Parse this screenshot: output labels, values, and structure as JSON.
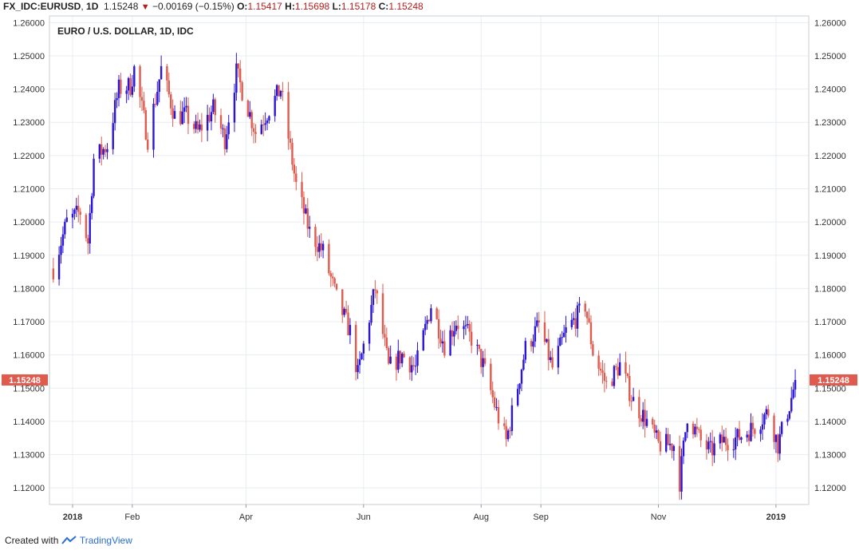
{
  "header": {
    "symbol": "FX_IDC:EURUSD",
    "interval": "1D",
    "last": "1.15248",
    "change": "−0.00169 (−0.15%)",
    "o_label": "O:",
    "o": "1.15417",
    "h_label": "H:",
    "h": "1.15698",
    "l_label": "L:",
    "l": "1.15178",
    "c_label": "C:",
    "c": "1.15248"
  },
  "footer": {
    "prefix": "Created with",
    "brand": "TradingView"
  },
  "colors": {
    "up": "#2b15d6",
    "down": "#e05a4e",
    "grid": "#e8edf2",
    "price_tag": "#e05a4e"
  },
  "chart_data": {
    "type": "candlestick",
    "title": "EURO / U.S. DOLLAR, 1D, IDC",
    "ylim": [
      1.115,
      1.262
    ],
    "y_ticks": [
      "1.12000",
      "1.13000",
      "1.14000",
      "1.15000",
      "1.16000",
      "1.17000",
      "1.18000",
      "1.19000",
      "1.20000",
      "1.21000",
      "1.22000",
      "1.23000",
      "1.24000",
      "1.25000",
      "1.26000"
    ],
    "x_ticks": [
      {
        "label": "2018",
        "date": "2018-01-01"
      },
      {
        "label": "Feb",
        "date": "2018-02-01"
      },
      {
        "label": "Apr",
        "date": "2018-04-01"
      },
      {
        "label": "Jun",
        "date": "2018-06-01"
      },
      {
        "label": "Aug",
        "date": "2018-08-01"
      },
      {
        "label": "Sep",
        "date": "2018-09-01"
      },
      {
        "label": "Nov",
        "date": "2018-11-01"
      },
      {
        "label": "2019",
        "date": "2019-01-01"
      }
    ],
    "date_range": [
      "2017-12-20",
      "2019-01-18"
    ],
    "last_price": "1.15248",
    "up_color": "#2b15d6",
    "down_color": "#e05a4e",
    "close_path": [
      [
        "2017-12-22",
        1.186
      ],
      [
        "2017-12-29",
        1.2
      ],
      [
        "2018-01-05",
        1.203
      ],
      [
        "2018-01-09",
        1.194
      ],
      [
        "2018-01-12",
        1.219
      ],
      [
        "2018-01-19",
        1.223
      ],
      [
        "2018-01-25",
        1.24
      ],
      [
        "2018-01-31",
        1.241
      ],
      [
        "2018-02-02",
        1.246
      ],
      [
        "2018-02-09",
        1.225
      ],
      [
        "2018-02-16",
        1.246
      ],
      [
        "2018-02-23",
        1.232
      ],
      [
        "2018-03-01",
        1.232
      ],
      [
        "2018-03-07",
        1.227
      ],
      [
        "2018-03-15",
        1.234
      ],
      [
        "2018-03-21",
        1.225
      ],
      [
        "2018-03-27",
        1.245
      ],
      [
        "2018-04-06",
        1.227
      ],
      [
        "2018-04-13",
        1.234
      ],
      [
        "2018-04-19",
        1.24
      ],
      [
        "2018-04-27",
        1.211
      ],
      [
        "2018-05-04",
        1.197
      ],
      [
        "2018-05-11",
        1.191
      ],
      [
        "2018-05-18",
        1.177
      ],
      [
        "2018-05-25",
        1.167
      ],
      [
        "2018-05-29",
        1.154
      ],
      [
        "2018-06-07",
        1.18
      ],
      [
        "2018-06-14",
        1.156
      ],
      [
        "2018-06-21",
        1.16
      ],
      [
        "2018-06-28",
        1.156
      ],
      [
        "2018-07-06",
        1.175
      ],
      [
        "2018-07-13",
        1.163
      ],
      [
        "2018-07-19",
        1.17
      ],
      [
        "2018-07-27",
        1.165
      ],
      [
        "2018-08-02",
        1.157
      ],
      [
        "2018-08-10",
        1.141
      ],
      [
        "2018-08-14",
        1.134
      ],
      [
        "2018-08-24",
        1.162
      ],
      [
        "2018-08-31",
        1.169
      ],
      [
        "2018-09-07",
        1.156
      ],
      [
        "2018-09-14",
        1.167
      ],
      [
        "2018-09-24",
        1.175
      ],
      [
        "2018-09-28",
        1.161
      ],
      [
        "2018-10-05",
        1.151
      ],
      [
        "2018-10-12",
        1.157
      ],
      [
        "2018-10-19",
        1.146
      ],
      [
        "2018-10-26",
        1.14
      ],
      [
        "2018-11-01",
        1.133
      ],
      [
        "2018-11-09",
        1.133
      ],
      [
        "2018-11-12",
        1.122
      ],
      [
        "2018-11-16",
        1.142
      ],
      [
        "2018-11-23",
        1.134
      ],
      [
        "2018-11-28",
        1.131
      ],
      [
        "2018-12-04",
        1.134
      ],
      [
        "2018-12-12",
        1.135
      ],
      [
        "2018-12-20",
        1.138
      ],
      [
        "2018-12-28",
        1.143
      ],
      [
        "2019-01-02",
        1.133
      ],
      [
        "2019-01-09",
        1.147
      ],
      [
        "2019-01-11",
        1.152
      ]
    ]
  }
}
